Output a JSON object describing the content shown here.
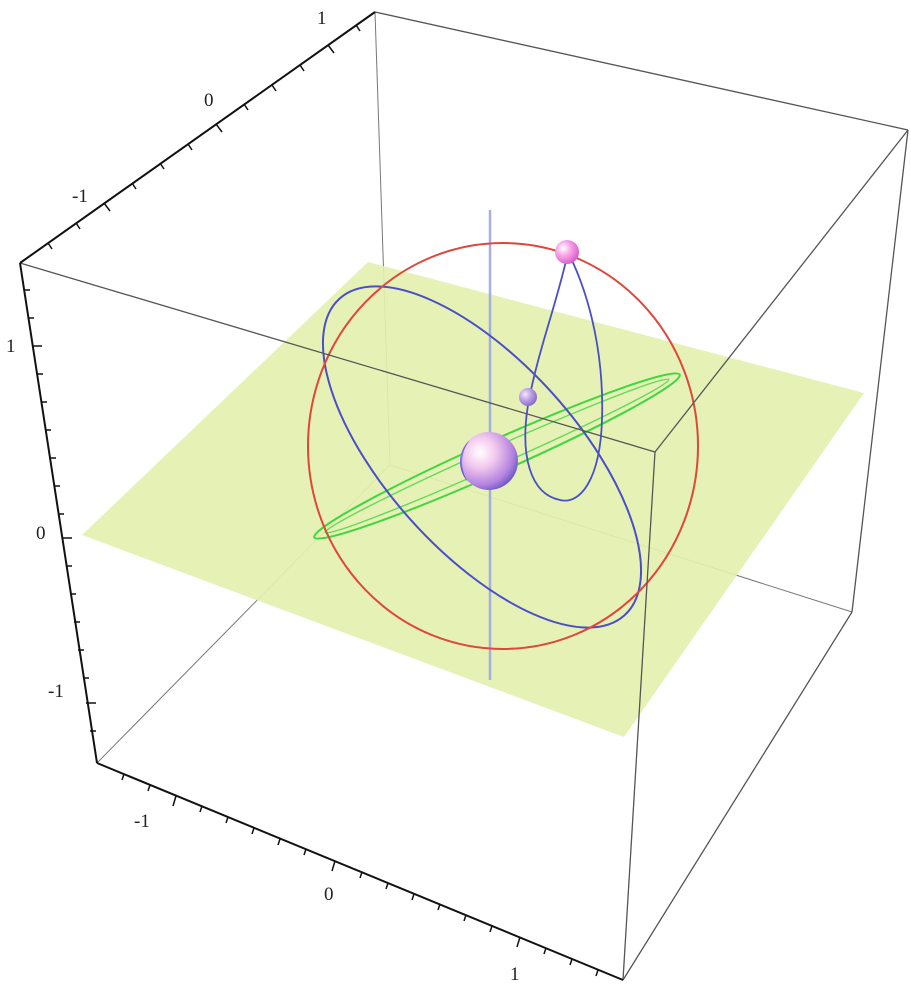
{
  "figure": {
    "description_type": "3D orbit plot",
    "axes": {
      "top_axis": {
        "tick_labels": [
          "-1",
          "0",
          "1"
        ]
      },
      "left_axis": {
        "tick_labels": [
          "1",
          "0",
          "-1"
        ]
      },
      "bottom_axis": {
        "tick_labels": [
          "-1",
          "0",
          "1"
        ]
      }
    },
    "colors": {
      "plane": "#e4f0b0",
      "red_orbit": "#e0463a",
      "blue_orbit": "#4a4fc8",
      "green_orbit": "#3fd63f",
      "vertical_axis": "#9aa0e6",
      "central_body": "#c9a3e8",
      "satellite": "#f07ad8",
      "small_body": "#a98bd6",
      "box": "#555555"
    },
    "objects": [
      {
        "name": "central-body",
        "kind": "sphere"
      },
      {
        "name": "satellite",
        "kind": "sphere"
      },
      {
        "name": "small-body",
        "kind": "sphere"
      },
      {
        "name": "red-orbit",
        "kind": "orbit"
      },
      {
        "name": "blue-orbit",
        "kind": "orbit"
      },
      {
        "name": "green-orbit",
        "kind": "orbit"
      },
      {
        "name": "equatorial-plane",
        "kind": "plane"
      },
      {
        "name": "vertical-axis",
        "kind": "line"
      }
    ]
  }
}
